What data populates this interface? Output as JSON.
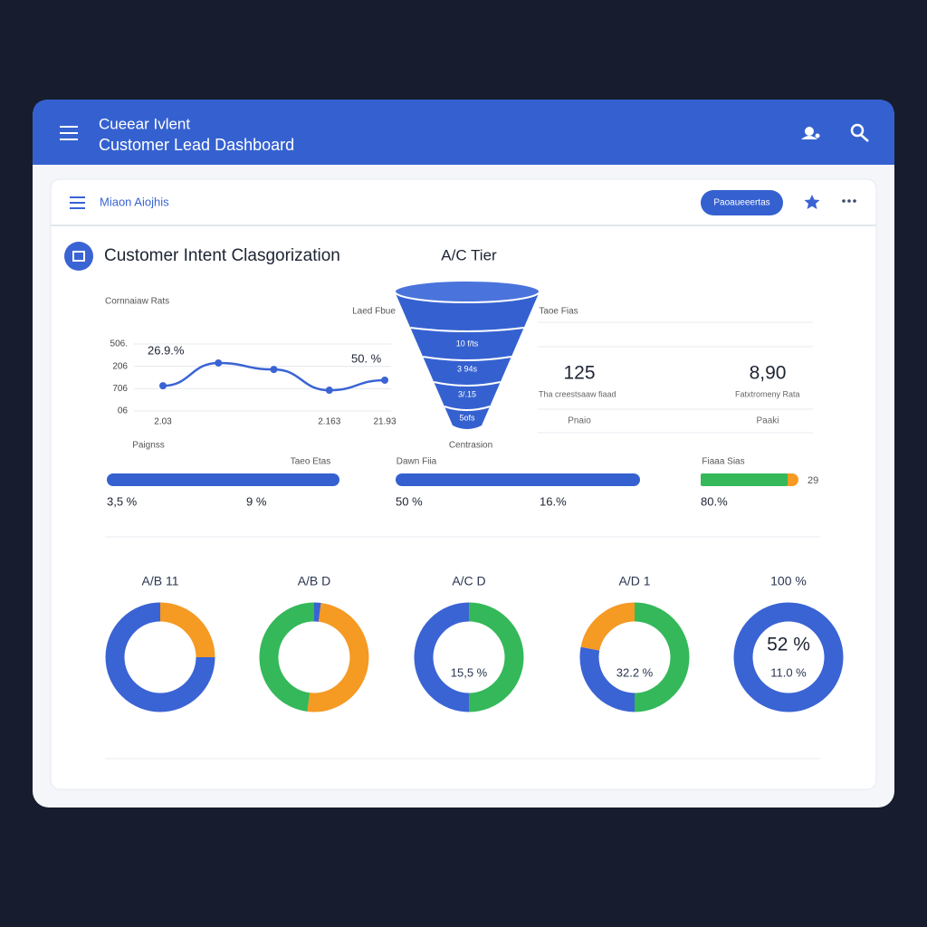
{
  "header": {
    "subtitle": "Cueear Ivlent",
    "title": "Customer Lead Dashboard"
  },
  "toolbar": {
    "label": "Miaon Aiojhis",
    "button": "Paoaueeertas"
  },
  "section": {
    "title": "Customer Intent Clasgorization",
    "tier": "A/C Tier"
  },
  "line_chart": {
    "type": "line",
    "label": "Cornnaiaw Rats",
    "categories": [
      "2.03",
      null,
      null,
      "2.163",
      "21.93"
    ],
    "values": [
      1.13,
      2.15,
      1.86,
      0.93,
      1.38
    ],
    "color": "#3a63d4",
    "ylim": [
      0,
      3
    ],
    "yticks": [
      {
        "value": 0,
        "label": "06"
      },
      {
        "value": 1,
        "label": "706"
      },
      {
        "value": 2,
        "label": "206"
      },
      {
        "value": 3,
        "label": "506."
      }
    ],
    "annotations": [
      "26.9.%",
      "50. %"
    ]
  },
  "funnel": {
    "left_label": "Laed Fbue",
    "right_label": "Taoe Fias",
    "levels": [
      "10 f/ts",
      "3 94s",
      "3/.15",
      "5ofs"
    ],
    "caption": "Centrasion"
  },
  "stats": [
    {
      "value": "125",
      "caption": "Tha creestsaaw fiaad",
      "foot": "Pnaio"
    },
    {
      "value": "8,90",
      "caption": "Fatxtromeny Rata",
      "foot": "Paaki"
    }
  ],
  "progress": [
    {
      "title": "Paignss",
      "label": "Taeo Etas",
      "left": "3,5 %",
      "right": "9 %"
    },
    {
      "label": "Dawn Fiia",
      "left": "50 %",
      "right": "16.%"
    },
    {
      "label": "Fiaaa Sias",
      "end": "29",
      "left": "80.%"
    }
  ],
  "donuts": [
    {
      "title": "A/B 11",
      "segments": [
        {
          "value": 25,
          "color": "#f59a23"
        },
        {
          "value": 75,
          "color": "#3a63d4"
        }
      ]
    },
    {
      "title": "A/B D",
      "segments": [
        {
          "value": 2,
          "color": "#3a63d4"
        },
        {
          "value": 50,
          "color": "#f59a23"
        },
        {
          "value": 48,
          "color": "#34b85a"
        }
      ]
    },
    {
      "title": "A/C D",
      "labels": [
        "15,5 %"
      ],
      "segments": [
        {
          "value": 50,
          "color": "#34b85a"
        },
        {
          "value": 50,
          "color": "#3a63d4"
        }
      ]
    },
    {
      "title": "A/D 1",
      "labels": [
        "32.2 %"
      ],
      "segments": [
        {
          "value": 50,
          "color": "#34b85a"
        },
        {
          "value": 28,
          "color": "#3a63d4"
        },
        {
          "value": 22,
          "color": "#f59a23"
        }
      ]
    },
    {
      "title": "100 %",
      "labels": [
        "52 %",
        "11.0 %"
      ],
      "segments": [
        {
          "value": 100,
          "color": "#3a63d4"
        }
      ]
    }
  ]
}
